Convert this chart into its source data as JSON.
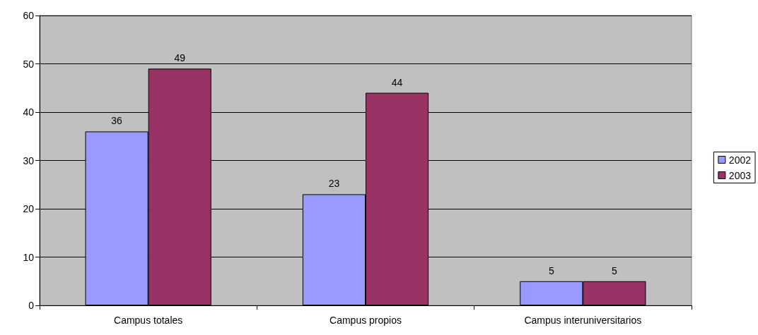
{
  "chart_data": {
    "type": "bar",
    "categories": [
      "Campus totales",
      "Campus propios",
      "Campus interuniversitarios"
    ],
    "series": [
      {
        "name": "2002",
        "color": "#9999ff",
        "values": [
          36,
          23,
          5
        ]
      },
      {
        "name": "2003",
        "color": "#993366",
        "values": [
          49,
          44,
          5
        ]
      }
    ],
    "ylim": [
      0,
      60
    ],
    "yticks": [
      0,
      10,
      20,
      30,
      40,
      50,
      60
    ],
    "grid": "y",
    "legend": "right",
    "data_labels": true
  }
}
